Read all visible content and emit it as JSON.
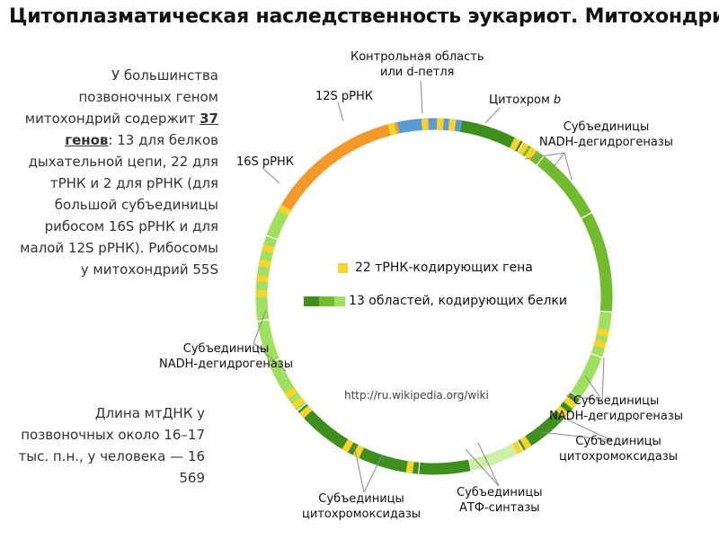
{
  "title": "Цитоплазматическая наследственность эукариот.  Митохондрии",
  "intro": {
    "lead": "У большинства позвоночных геном митохондрий содержит",
    "highlight": "37 генов",
    "rest": ": 13 для белков дыхательной цепи, 22 для тРНК и 2 для рРНК (для большой субъединицы рибосом 16S рРНК и для малой 12S рРНК). Рибосомы у митохондрий 55S"
  },
  "length_note": "Длина мтДНК у позвоночных около 16–17 тыс. п.н., у человека — 16 569",
  "labels": {
    "control_region": [
      "Контрольная область",
      "или d-петля"
    ],
    "rrna_12s": "12S рРНК",
    "cytochrome_b": "Цитохром b",
    "nadh_top": [
      "Субъединицы",
      "NADH-дегидрогеназы"
    ],
    "rrna_16s": "16S рРНК",
    "nadh_left": [
      "Субъединицы",
      "NADH-дегидрогеназы"
    ],
    "nadh_right": [
      "Субъединицы",
      "NADH-дегидрогеназы"
    ],
    "cox_right": [
      "Субъединицы",
      "цитохромоксидазы"
    ],
    "atp": [
      "Субъединицы",
      "АТФ-синтазы"
    ],
    "cox_bottom": [
      "Субъединицы",
      "цитохромоксидазы"
    ]
  },
  "legend": {
    "trna": "22 тРНК-кодирующих гена",
    "protein": "13 областей, кодирующих белки"
  },
  "source_url": "http://ru.wikipedia.org/wiki",
  "colors": {
    "control": "#5b9bd5",
    "rrna": "#f39a2b",
    "trna": "#f6d32d",
    "protein_dark": "#3f8f1f",
    "protein_mid": "#73bb2e",
    "protein_light": "#9fe060",
    "protein_pale": "#ccf0a8"
  }
}
